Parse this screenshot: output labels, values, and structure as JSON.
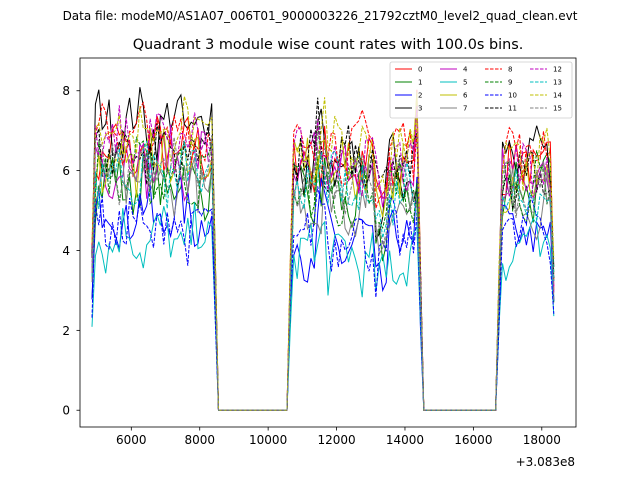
{
  "chart_data": {
    "type": "line",
    "suptitle": "Data file: modeM0/AS1A07_006T01_9000003226_21792cztM0_level2_quad_clean.evt",
    "title": "Quadrant 3 module wise count rates with 100.0s bins.",
    "xlabel": "",
    "ylabel": "",
    "x_offset_label": "+3.083e8",
    "xlim": [
      4500,
      19000
    ],
    "ylim": [
      -0.42,
      8.82
    ],
    "xticks": [
      6000,
      8000,
      10000,
      12000,
      14000,
      16000,
      18000
    ],
    "xtick_labels": [
      "6000",
      "8000",
      "10000",
      "12000",
      "14000",
      "16000",
      "18000"
    ],
    "yticks": [
      0,
      2,
      4,
      6,
      8
    ],
    "ytick_labels": [
      "0",
      "2",
      "4",
      "6",
      "8"
    ],
    "grid": false,
    "legend": {
      "placement": "top-right",
      "columns": 4
    },
    "x_start": 4850,
    "x_step": 100,
    "segments": [
      {
        "x_range": [
          4850,
          8450
        ],
        "active": true
      },
      {
        "x_range": [
          8550,
          10550
        ],
        "active": false
      },
      {
        "x_range": [
          10650,
          14450
        ],
        "active": true
      },
      {
        "x_range": [
          14550,
          16650
        ],
        "active": false
      },
      {
        "x_range": [
          16750,
          18350
        ],
        "active": true
      }
    ],
    "series": [
      {
        "name": "0",
        "color": "#ff0000",
        "dash": false,
        "levels": [
          6.5,
          6.1,
          6.2,
          6.3
        ]
      },
      {
        "name": "1",
        "color": "#008000",
        "dash": false,
        "levels": [
          5.7,
          5.3,
          5.6,
          5.6
        ]
      },
      {
        "name": "2",
        "color": "#0000ff",
        "dash": false,
        "levels": [
          4.9,
          4.2,
          4.4,
          4.9
        ]
      },
      {
        "name": "3",
        "color": "#000000",
        "dash": false,
        "levels": [
          7.2,
          6.0,
          6.2,
          6.4
        ]
      },
      {
        "name": "4",
        "color": "#bf00bf",
        "dash": false,
        "levels": [
          6.2,
          6.0,
          5.8,
          6.1
        ]
      },
      {
        "name": "5",
        "color": "#00bfbf",
        "dash": false,
        "levels": [
          4.3,
          3.8,
          4.1,
          4.4
        ]
      },
      {
        "name": "6",
        "color": "#bfbf00",
        "dash": false,
        "levels": [
          6.3,
          6.1,
          5.8,
          6.1
        ]
      },
      {
        "name": "7",
        "color": "#808080",
        "dash": false,
        "levels": [
          5.7,
          5.2,
          5.2,
          5.5
        ]
      },
      {
        "name": "8",
        "color": "#ff0000",
        "dash": true,
        "levels": [
          6.9,
          6.6,
          6.5,
          6.7
        ]
      },
      {
        "name": "9",
        "color": "#008000",
        "dash": true,
        "levels": [
          5.9,
          5.5,
          5.6,
          5.8
        ]
      },
      {
        "name": "10",
        "color": "#0000ff",
        "dash": true,
        "levels": [
          4.6,
          4.4,
          4.6,
          4.9
        ]
      },
      {
        "name": "11",
        "color": "#000000",
        "dash": true,
        "levels": [
          6.5,
          6.2,
          6.0,
          6.4
        ]
      },
      {
        "name": "12",
        "color": "#bf00bf",
        "dash": true,
        "levels": [
          6.7,
          6.3,
          6.0,
          6.6
        ]
      },
      {
        "name": "13",
        "color": "#00bfbf",
        "dash": true,
        "levels": [
          5.9,
          5.5,
          5.5,
          5.8
        ]
      },
      {
        "name": "14",
        "color": "#bfbf00",
        "dash": true,
        "levels": [
          7.0,
          6.6,
          6.2,
          6.6
        ]
      },
      {
        "name": "15",
        "color": "#808080",
        "dash": true,
        "levels": [
          6.1,
          5.6,
          5.4,
          5.9
        ]
      }
    ],
    "annotations": []
  }
}
